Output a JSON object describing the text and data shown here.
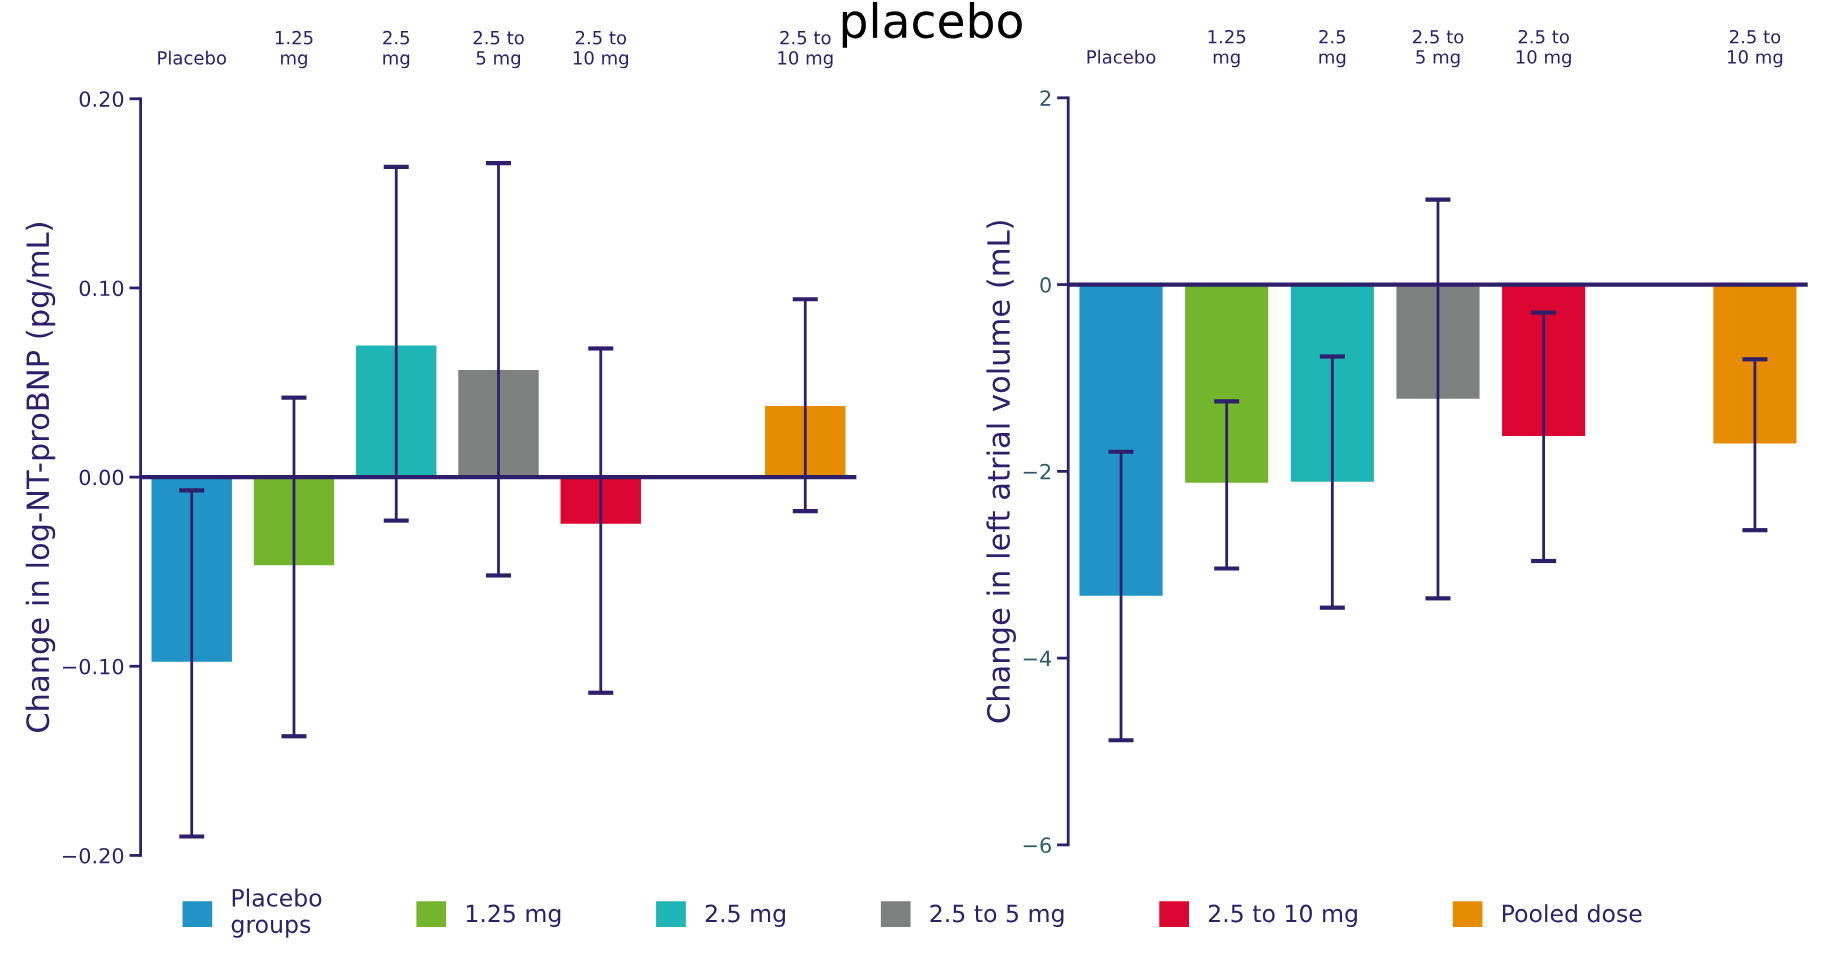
{
  "chart_data": [
    {
      "type": "bar",
      "title": "placebo",
      "ylabel": "Change in log-NT-proBNP (pg/mL)",
      "categories": [
        "Placebo",
        "1.25\nmg",
        "2.5\nmg",
        "2.5 to\n5 mg",
        "2.5 to\n10 mg",
        null,
        "2.5 to\n10 mg"
      ],
      "series": [
        {
          "name": "Placebo\ngroups",
          "color": "#2193c6",
          "values": [
            -0.098,
            null,
            null,
            null,
            null,
            null,
            null
          ],
          "errors": [
            [
              -0.19,
              -0.007
            ],
            null,
            null,
            null,
            null,
            null,
            null
          ]
        },
        {
          "name": "1.25 mg",
          "color": "#74b52e",
          "values": [
            null,
            -0.047,
            null,
            null,
            null,
            null,
            null
          ],
          "errors": [
            null,
            [
              -0.137,
              0.042
            ],
            null,
            null,
            null,
            null,
            null
          ]
        },
        {
          "name": "2.5 mg",
          "color": "#20b5b5",
          "values": [
            null,
            null,
            0.07,
            null,
            null,
            null,
            null
          ],
          "errors": [
            null,
            null,
            [
              -0.023,
              0.164
            ],
            null,
            null,
            null,
            null
          ]
        },
        {
          "name": "2.5 to 5 mg",
          "color": "#7f8180",
          "values": [
            null,
            null,
            null,
            0.057,
            null,
            null,
            null
          ],
          "errors": [
            null,
            null,
            null,
            [
              -0.052,
              0.166
            ],
            null,
            null,
            null
          ]
        },
        {
          "name": "2.5 to 10 mg",
          "color": "#dc0632",
          "values": [
            null,
            null,
            null,
            null,
            -0.025,
            null,
            null
          ],
          "errors": [
            null,
            null,
            null,
            null,
            [
              -0.114,
              0.068
            ],
            null,
            null
          ]
        },
        {
          "name": "Pooled dose",
          "color": "#e68c03",
          "values": [
            null,
            null,
            null,
            null,
            null,
            null,
            0.038
          ],
          "errors": [
            null,
            null,
            null,
            null,
            null,
            null,
            [
              -0.018,
              0.094
            ]
          ]
        }
      ],
      "ylim": [
        -0.2,
        0.2
      ],
      "yticks": [
        {
          "value": -0.2,
          "label": "−0.20"
        },
        {
          "value": -0.1,
          "label": "−0.10"
        },
        {
          "value": 0,
          "label": "0.00"
        },
        {
          "value": 0.1,
          "label": "0.10"
        },
        {
          "value": 0.2,
          "label": "0.20"
        }
      ],
      "ref_lines": [
        {
          "axis": "y",
          "value": 0,
          "color": "#2e1f6b"
        }
      ],
      "grid": false,
      "legend": "bottom"
    },
    {
      "type": "bar",
      "ylabel": "Change in left atrial volume (mL)",
      "categories": [
        "Placebo",
        "1.25\nmg",
        "2.5\nmg",
        "2.5 to\n5 mg",
        "2.5 to\n10 mg",
        null,
        "2.5 to\n10 mg"
      ],
      "series": [
        {
          "color": "#2193c6",
          "values": [
            -3.34,
            null,
            null,
            null,
            null,
            null,
            null
          ],
          "errors": [
            [
              -4.88,
              -1.79
            ],
            null,
            null,
            null,
            null,
            null,
            null
          ]
        },
        {
          "color": "#74b52e",
          "values": [
            null,
            -2.13,
            null,
            null,
            null,
            null,
            null
          ],
          "errors": [
            null,
            [
              -3.04,
              -1.25
            ],
            null,
            null,
            null,
            null,
            null
          ]
        },
        {
          "color": "#20b5b5",
          "values": [
            null,
            null,
            -2.12,
            null,
            null,
            null,
            null
          ],
          "errors": [
            null,
            null,
            [
              -3.46,
              -0.77
            ],
            null,
            null,
            null,
            null
          ]
        },
        {
          "color": "#7f8180",
          "values": [
            null,
            null,
            null,
            -1.23,
            null,
            null,
            null
          ],
          "errors": [
            null,
            null,
            null,
            [
              -3.36,
              0.91
            ],
            null,
            null,
            null
          ]
        },
        {
          "color": "#dc0632",
          "values": [
            null,
            null,
            null,
            null,
            -1.63,
            null,
            null
          ],
          "errors": [
            null,
            null,
            null,
            null,
            [
              -2.96,
              -0.3
            ],
            null,
            null
          ]
        },
        {
          "color": "#e68c03",
          "values": [
            null,
            null,
            null,
            null,
            null,
            null,
            -1.71
          ],
          "errors": [
            null,
            null,
            null,
            null,
            null,
            null,
            [
              -2.63,
              -0.8
            ]
          ]
        }
      ],
      "ylim": [
        -6,
        2
      ],
      "yticks": [
        {
          "value": -6,
          "label": "−6"
        },
        {
          "value": -4,
          "label": "−4"
        },
        {
          "value": -2,
          "label": "−2"
        },
        0,
        2
      ],
      "ref_lines": [
        {
          "axis": "y",
          "value": 0,
          "color": "#2e1f6b"
        }
      ],
      "grid": false
    }
  ]
}
